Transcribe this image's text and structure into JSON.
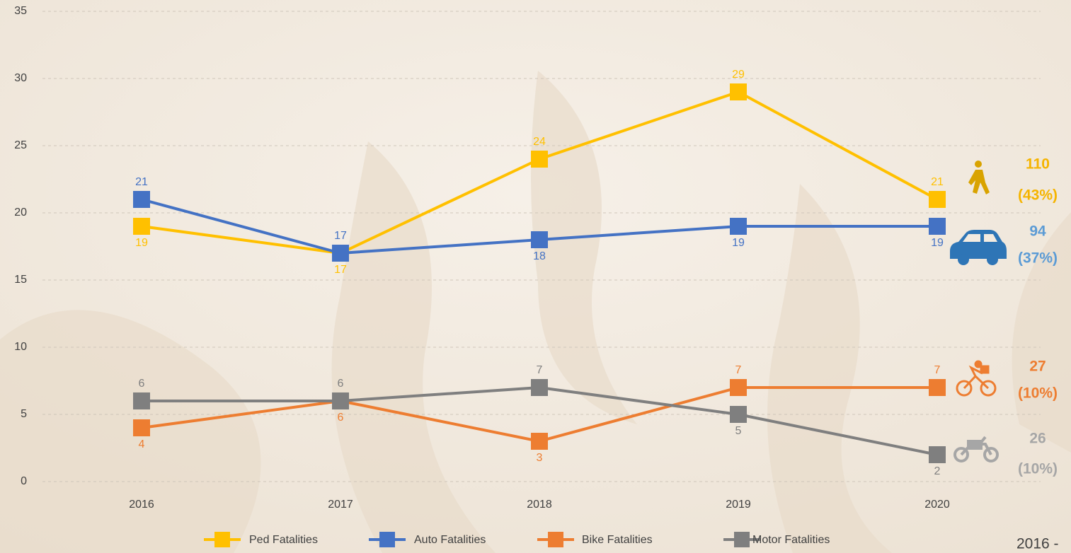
{
  "chart_data": {
    "type": "line",
    "categories": [
      "2016",
      "2017",
      "2018",
      "2019",
      "2020"
    ],
    "series": [
      {
        "name": "Ped Fatalities",
        "color": "#FFC000",
        "values": [
          19,
          17,
          24,
          29,
          21
        ]
      },
      {
        "name": "Auto Fatalities",
        "color": "#4472C4",
        "values": [
          21,
          17,
          18,
          19,
          19
        ]
      },
      {
        "name": "Bike Fatalities",
        "color": "#ED7D31",
        "values": [
          4,
          6,
          3,
          7,
          7
        ]
      },
      {
        "name": "Motor Fatalities",
        "color": "#7F7F7F",
        "values": [
          6,
          6,
          7,
          5,
          2
        ]
      }
    ],
    "ylim": [
      0,
      35
    ],
    "yticks": [
      0,
      5,
      10,
      15,
      20,
      25,
      30,
      35
    ],
    "grid": true,
    "legend": "bottom",
    "annotations": [
      {
        "total": "110",
        "share": "(43%)",
        "color": "#F5B400"
      },
      {
        "total": "94",
        "share": "(37%)",
        "color": "#5B9BD5"
      },
      {
        "total": "27",
        "share": "(10%)",
        "color": "#ED7D31"
      },
      {
        "total": "26",
        "share": "(10%)",
        "color": "#A6A6A6"
      }
    ],
    "footer": "2016 -"
  }
}
